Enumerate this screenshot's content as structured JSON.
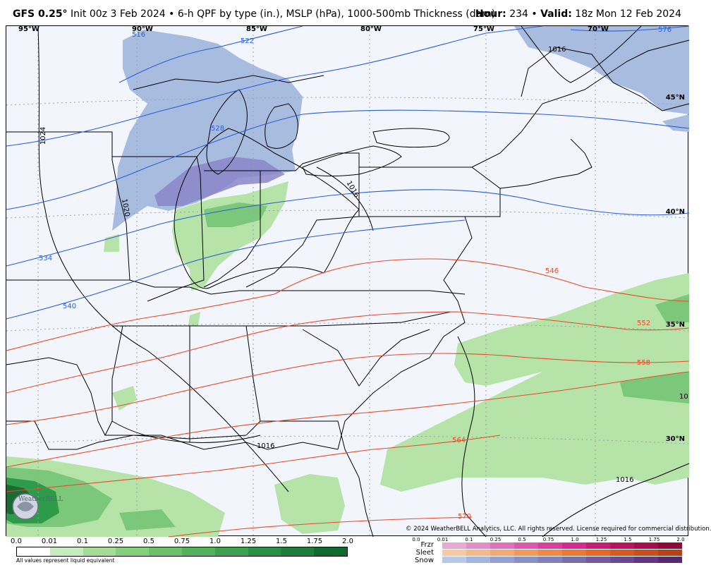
{
  "header": {
    "model": "GFS 0.25°",
    "init_text": "Init 00z 3 Feb 2024 • 6-h QPF by type (in.), MSLP (hPa), 1000-500mb Thickness (dam)",
    "hour_label": "Hour:",
    "hour_value": "234",
    "valid_label": "Valid:",
    "valid_value": "18z Mon 12 Feb 2024"
  },
  "map": {
    "longitude_labels": [
      "95°W",
      "90°W",
      "85°W",
      "80°W",
      "75°W",
      "70°W"
    ],
    "latitude_labels": [
      "45°N",
      "40°N",
      "35°N",
      "30°N"
    ],
    "thickness_labels": [
      "516",
      "522",
      "528",
      "534",
      "540",
      "546",
      "552",
      "558",
      "564",
      "570",
      "576"
    ],
    "isobar_labels": [
      "1016",
      "1024",
      "1020",
      "1016",
      "1016",
      "1016",
      "10"
    ],
    "copyright": "© 2024 WeatherBELL Analytics, LLC. All rights reserved. License required for commercial distribution.",
    "logo_text": "WeatherBELL",
    "colors": {
      "rain_light": "#b6e3a8",
      "rain_mid": "#7cc87a",
      "rain_dark": "#2d9b4a",
      "snow": "#a8bce0",
      "snow_heavy": "#8b86c8",
      "cold_contour": "#2a5fd4",
      "warm_contour": "#e84a2a",
      "isobar": "#000000"
    }
  },
  "legend": {
    "rain_ticks": [
      "0.0",
      "0.01",
      "0.1",
      "0.25",
      "0.5",
      "0.75",
      "1.0",
      "1.25",
      "1.5",
      "1.75",
      "2.0"
    ],
    "rain_colors": [
      "#ffffff",
      "#c6ebbc",
      "#a4dc97",
      "#86cf7c",
      "#6cc069",
      "#53b15b",
      "#3da150",
      "#2a9046",
      "#1b7e3c",
      "#0f6a30"
    ],
    "footnote": "All values represent liquid equivalent",
    "ptype_ticks": [
      "0.0",
      "0.01",
      "0.1",
      "0.25",
      "0.5",
      "0.75",
      "1.0",
      "1.25",
      "1.5",
      "1.75",
      "2.0"
    ],
    "frzr_label": "Frzr",
    "sleet_label": "Sleet",
    "snow_label": "Snow",
    "frzr_colors": [
      "#e8a8d0",
      "#e48cc4",
      "#e070b8",
      "#dc58ac",
      "#d8409e",
      "#d22c8c",
      "#c61c74",
      "#b8145e",
      "#a40e4a",
      "#8c0a38"
    ],
    "sleet_colors": [
      "#f8c8a0",
      "#f6b88a",
      "#f4a872",
      "#f2985c",
      "#f08848",
      "#ec7836",
      "#e46828",
      "#d85a20",
      "#c84e1c",
      "#b44418"
    ],
    "snow_colors": [
      "#b8c8e8",
      "#a4b4e0",
      "#94a0d4",
      "#8890c8",
      "#8080bc",
      "#7a6cae",
      "#7458a0",
      "#6c4892",
      "#623682",
      "#562870"
    ]
  }
}
